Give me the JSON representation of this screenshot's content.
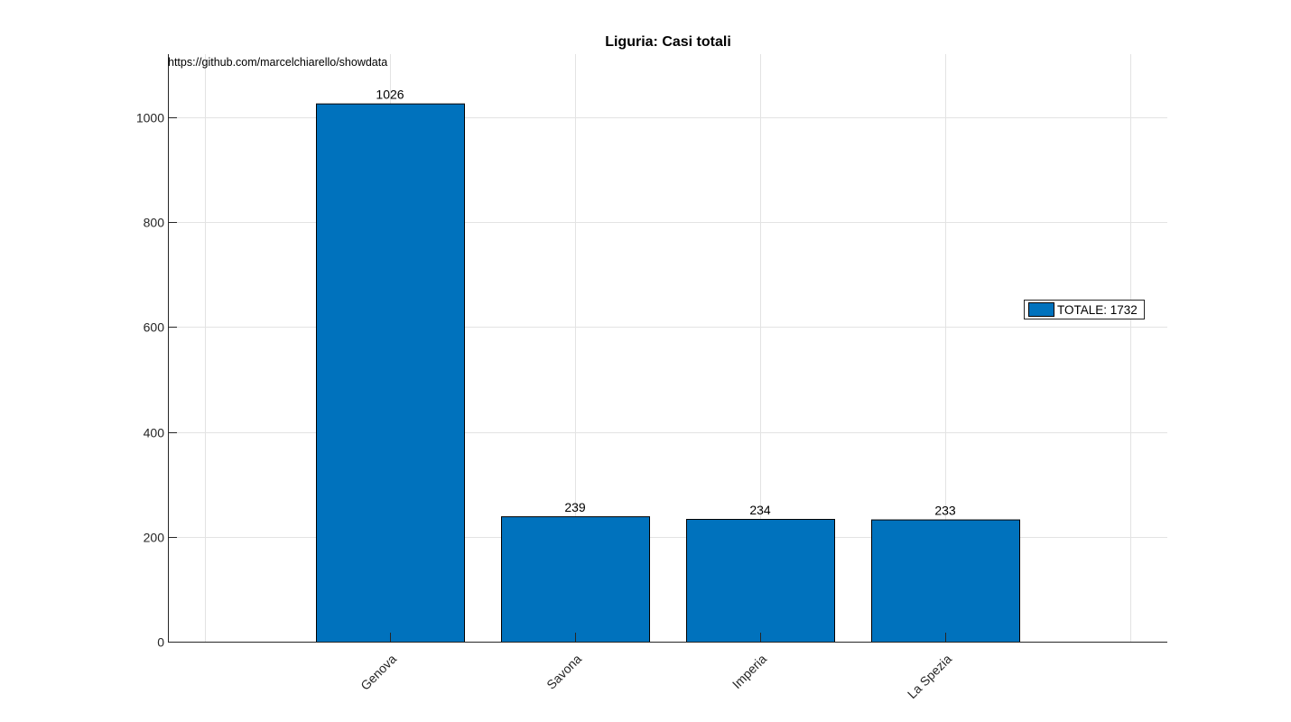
{
  "chart_data": {
    "type": "bar",
    "title": "Liguria: Casi totali",
    "annotation": "https://github.com/marcelchiarello/showdata",
    "categories": [
      "Genova",
      "Savona",
      "Imperia",
      "La Spezia"
    ],
    "series": [
      {
        "name": "TOTALE: 1732",
        "values": [
          1026,
          239,
          234,
          233
        ],
        "color": "#0072BD"
      }
    ],
    "data_labels": [
      "1026",
      "239",
      "234",
      "233"
    ],
    "y_ticks": [
      0,
      200,
      400,
      600,
      800,
      1000
    ],
    "ylim": [
      0,
      1120
    ],
    "xlabel": "",
    "ylabel": "",
    "grid": true,
    "legend_position": "right"
  }
}
